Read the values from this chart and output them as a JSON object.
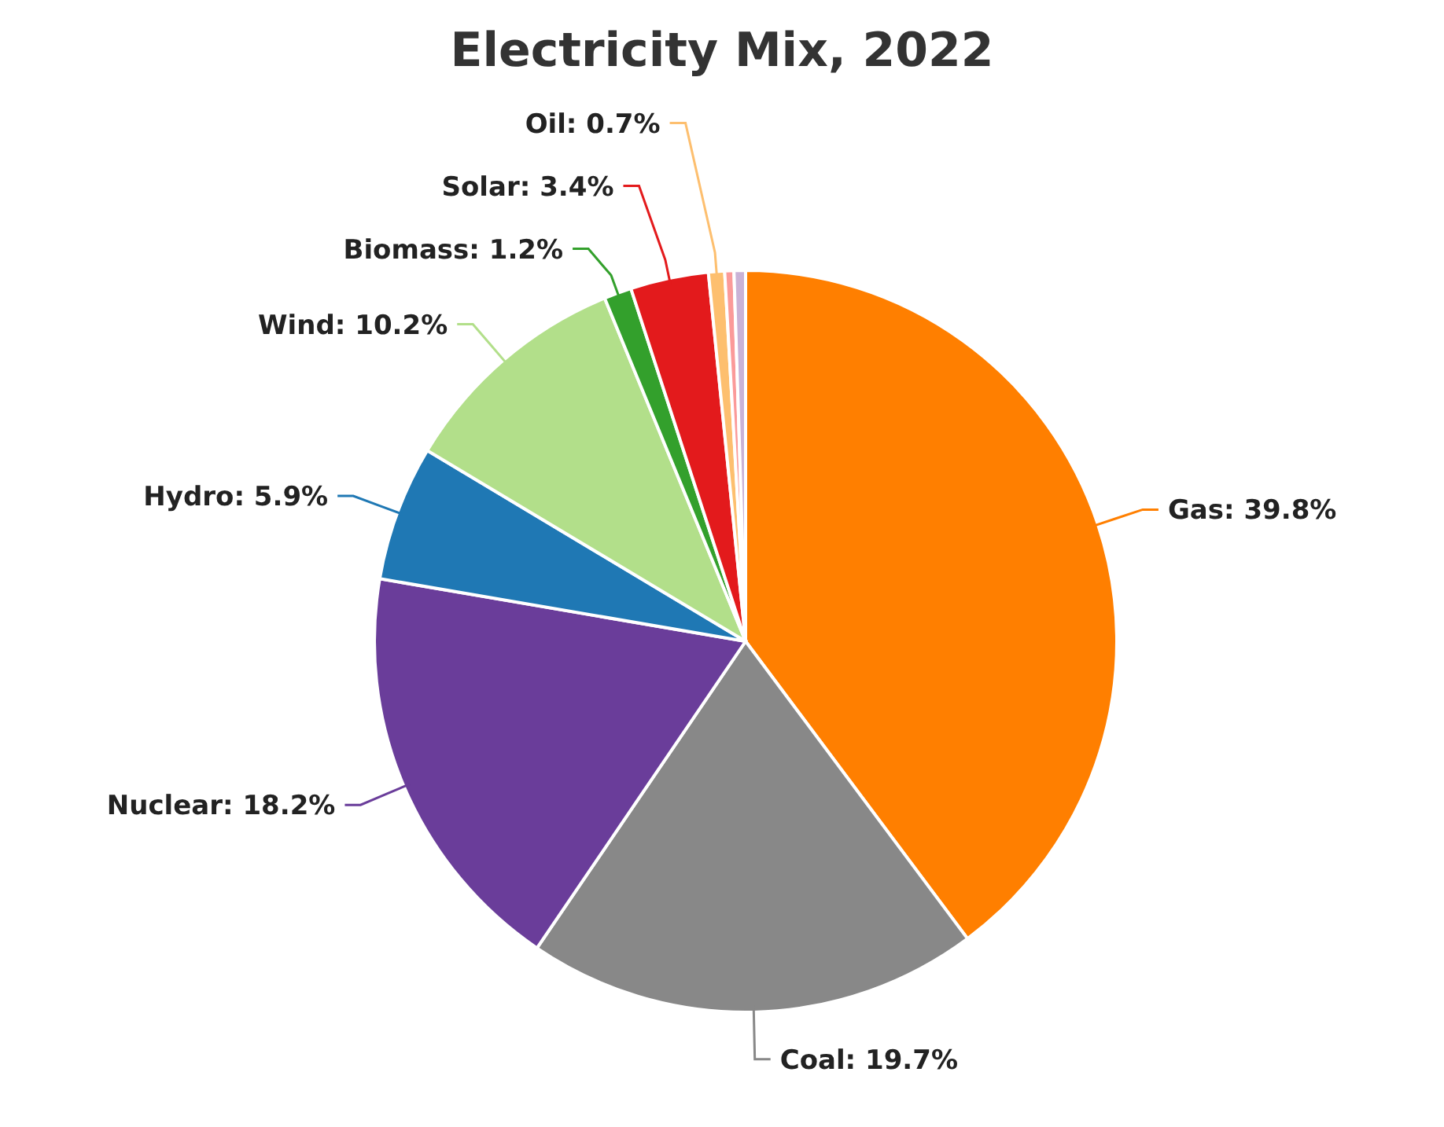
{
  "chart_data": {
    "type": "pie",
    "title": "Electricity Mix, 2022",
    "categories": [
      "Gas",
      "Coal",
      "Nuclear",
      "Hydro",
      "Wind",
      "Biomass",
      "Solar",
      "Oil",
      null,
      null
    ],
    "values": [
      39.8,
      19.7,
      18.2,
      5.9,
      10.2,
      1.2,
      3.4,
      0.7,
      0.4,
      0.5
    ],
    "value_labels": [
      ": 39.8%",
      ": 19.7%",
      ": 18.2%",
      ": 5.9%",
      ": 10.2%",
      ": 1.2%",
      ": 3.4%",
      ": 0.7%",
      null,
      null
    ],
    "colors": [
      "#ff7f00",
      "#888888",
      "#6a3d9a",
      "#1f78b4",
      "#b2df8a",
      "#33a02c",
      "#e31a1c",
      "#fdbf6f",
      "#fb9a99",
      "#cab2d6"
    ],
    "legend": false
  }
}
